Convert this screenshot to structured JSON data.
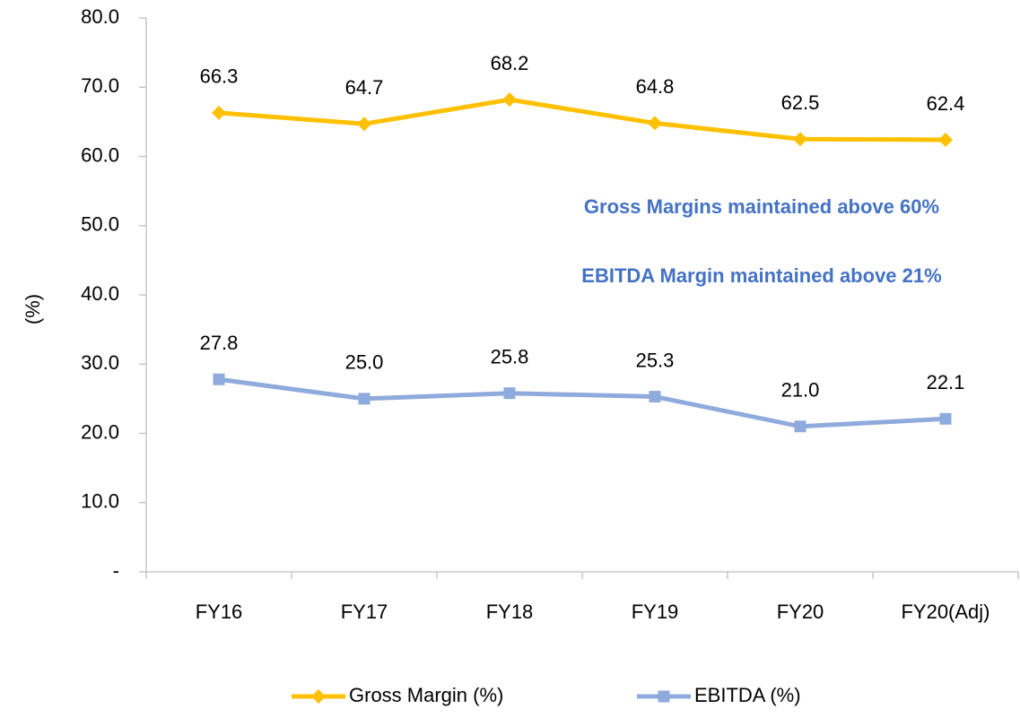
{
  "chart_data": {
    "type": "line",
    "y_label": "(%)",
    "categories": [
      "FY16",
      "FY17",
      "FY18",
      "FY19",
      "FY20",
      "FY20(Adj)"
    ],
    "series": [
      {
        "name": "Gross Margin (%)",
        "color": "#ffc000",
        "marker": "diamond",
        "values": [
          66.3,
          64.7,
          68.2,
          64.8,
          62.5,
          62.4
        ],
        "value_labels": [
          "66.3",
          "64.7",
          "68.2",
          "64.8",
          "62.5",
          "62.4"
        ]
      },
      {
        "name": "EBITDA (%)",
        "color": "#8faadc",
        "marker": "square",
        "values": [
          27.8,
          25.0,
          25.8,
          25.3,
          21.0,
          22.1
        ],
        "value_labels": [
          "27.8",
          "25.0",
          "25.8",
          "25.3",
          "21.0",
          "22.1"
        ]
      }
    ],
    "ylim": [
      0,
      80
    ],
    "yticks": [
      {
        "value": 0,
        "label": "-"
      },
      {
        "value": 10,
        "label": "10.0"
      },
      {
        "value": 20,
        "label": "20.0"
      },
      {
        "value": 30,
        "label": "30.0"
      },
      {
        "value": 40,
        "label": "40.0"
      },
      {
        "value": 50,
        "label": "50.0"
      },
      {
        "value": 60,
        "label": "60.0"
      },
      {
        "value": 70,
        "label": "70.0"
      },
      {
        "value": 80,
        "label": "80.0"
      }
    ],
    "annotations": [
      "Gross Margins maintained above 60%",
      "EBITDA Margin maintained above 21%"
    ],
    "annotation_color": "#4472c4",
    "legend": "bottom",
    "grid": false
  }
}
